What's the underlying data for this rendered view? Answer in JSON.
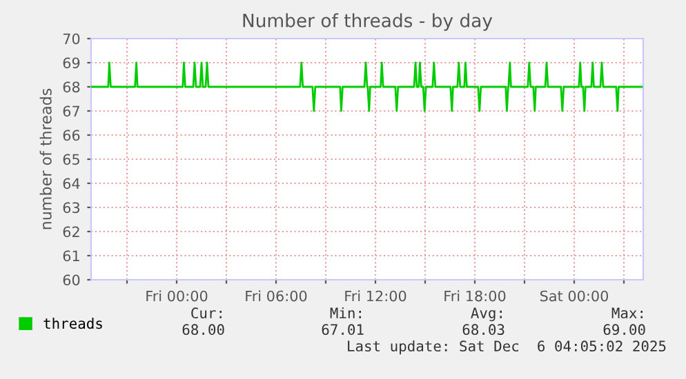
{
  "chart_data": {
    "type": "line",
    "title": "Number of threads - by day",
    "ylabel": "number of threads",
    "xlim": [
      "2025-12-04T18:50",
      "2025-12-06T04:10"
    ],
    "xticks": [
      {
        "value": "2025-12-04T21:00",
        "label": null
      },
      {
        "value": "2025-12-05T00:00",
        "label": "Fri 00:00"
      },
      {
        "value": "2025-12-05T03:00",
        "label": null
      },
      {
        "value": "2025-12-05T06:00",
        "label": "Fri 06:00"
      },
      {
        "value": "2025-12-05T09:00",
        "label": null
      },
      {
        "value": "2025-12-05T12:00",
        "label": "Fri 12:00"
      },
      {
        "value": "2025-12-05T15:00",
        "label": null
      },
      {
        "value": "2025-12-05T18:00",
        "label": "Fri 18:00"
      },
      {
        "value": "2025-12-05T21:00",
        "label": null
      },
      {
        "value": "2025-12-06T00:00",
        "label": "Sat 00:00"
      },
      {
        "value": "2025-12-06T03:00",
        "label": null
      }
    ],
    "ylim": [
      60,
      70
    ],
    "yticks": [
      60,
      61,
      62,
      63,
      64,
      65,
      66,
      67,
      68,
      69,
      70
    ],
    "grid": true,
    "legend": "bottom left",
    "marker": "none",
    "line_style": "solid",
    "series": [
      {
        "name": "threads",
        "color": "#00cc00",
        "x": [
          "2025-12-04T18:50",
          "2025-12-04T19:52",
          "2025-12-04T19:56",
          "2025-12-04T20:01",
          "2025-12-04T21:29",
          "2025-12-04T21:34",
          "2025-12-04T21:38",
          "2025-12-05T00:22",
          "2025-12-05T00:26",
          "2025-12-05T00:31",
          "2025-12-05T01:00",
          "2025-12-05T01:05",
          "2025-12-05T01:10",
          "2025-12-05T01:25",
          "2025-12-05T01:30",
          "2025-12-05T01:35",
          "2025-12-05T01:45",
          "2025-12-05T01:50",
          "2025-12-05T01:55",
          "2025-12-05T07:27",
          "2025-12-05T07:32",
          "2025-12-05T07:37",
          "2025-12-05T08:12",
          "2025-12-05T08:17",
          "2025-12-05T08:22",
          "2025-12-05T09:52",
          "2025-12-05T09:56",
          "2025-12-05T10:01",
          "2025-12-05T11:20",
          "2025-12-05T11:25",
          "2025-12-05T11:30",
          "2025-12-05T11:32",
          "2025-12-05T11:37",
          "2025-12-05T11:41",
          "2025-12-05T12:19",
          "2025-12-05T12:23",
          "2025-12-05T12:28",
          "2025-12-05T13:12",
          "2025-12-05T13:17",
          "2025-12-05T13:22",
          "2025-12-05T14:20",
          "2025-12-05T14:25",
          "2025-12-05T14:30",
          "2025-12-05T14:37",
          "2025-12-05T14:41",
          "2025-12-05T14:46",
          "2025-12-05T14:53",
          "2025-12-05T14:58",
          "2025-12-05T15:03",
          "2025-12-05T15:27",
          "2025-12-05T15:32",
          "2025-12-05T15:37",
          "2025-12-05T16:32",
          "2025-12-05T16:37",
          "2025-12-05T16:41",
          "2025-12-05T16:57",
          "2025-12-05T17:02",
          "2025-12-05T17:07",
          "2025-12-05T17:22",
          "2025-12-05T17:26",
          "2025-12-05T17:31",
          "2025-12-05T18:12",
          "2025-12-05T18:17",
          "2025-12-05T18:22",
          "2025-12-05T19:52",
          "2025-12-05T19:56",
          "2025-12-05T20:01",
          "2025-12-05T20:02",
          "2025-12-05T20:07",
          "2025-12-05T20:11",
          "2025-12-05T21:12",
          "2025-12-05T21:17",
          "2025-12-05T21:22",
          "2025-12-05T21:32",
          "2025-12-05T21:37",
          "2025-12-05T21:41",
          "2025-12-05T22:15",
          "2025-12-05T22:20",
          "2025-12-05T22:25",
          "2025-12-05T23:12",
          "2025-12-05T23:17",
          "2025-12-05T23:22",
          "2025-12-06T00:17",
          "2025-12-06T00:22",
          "2025-12-06T00:26",
          "2025-12-06T00:32",
          "2025-12-06T00:37",
          "2025-12-06T00:41",
          "2025-12-06T01:02",
          "2025-12-06T01:07",
          "2025-12-06T01:11",
          "2025-12-06T01:35",
          "2025-12-06T01:40",
          "2025-12-06T01:45",
          "2025-12-06T02:32",
          "2025-12-06T02:37",
          "2025-12-06T02:41",
          "2025-12-06T04:05"
        ],
        "values": [
          68,
          68,
          69,
          68,
          68,
          69,
          68,
          68,
          69,
          68,
          68,
          69,
          68,
          68,
          69,
          68,
          68,
          69,
          68,
          68,
          69,
          68,
          68,
          67,
          68,
          68,
          67,
          68,
          68,
          69,
          68,
          68,
          67,
          68,
          68,
          69,
          68,
          68,
          67,
          68,
          68,
          69,
          68,
          68,
          69,
          68,
          68,
          67,
          68,
          68,
          69,
          68,
          68,
          67,
          68,
          68,
          69,
          68,
          68,
          69,
          68,
          68,
          67,
          68,
          68,
          67,
          68,
          68,
          69,
          68,
          68,
          69,
          68,
          68,
          67,
          68,
          68,
          69,
          68,
          68,
          67,
          68,
          68,
          69,
          68,
          68,
          67,
          68,
          68,
          69,
          68,
          68,
          69,
          68,
          68,
          67,
          68,
          68
        ]
      }
    ],
    "annotations": [
      "Cur:",
      "Min:",
      "Avg:",
      "Max:",
      "68.00",
      "67.01",
      "68.03",
      "69.00",
      "Last update: Sat Dec  6 04:05:02 2025"
    ]
  }
}
